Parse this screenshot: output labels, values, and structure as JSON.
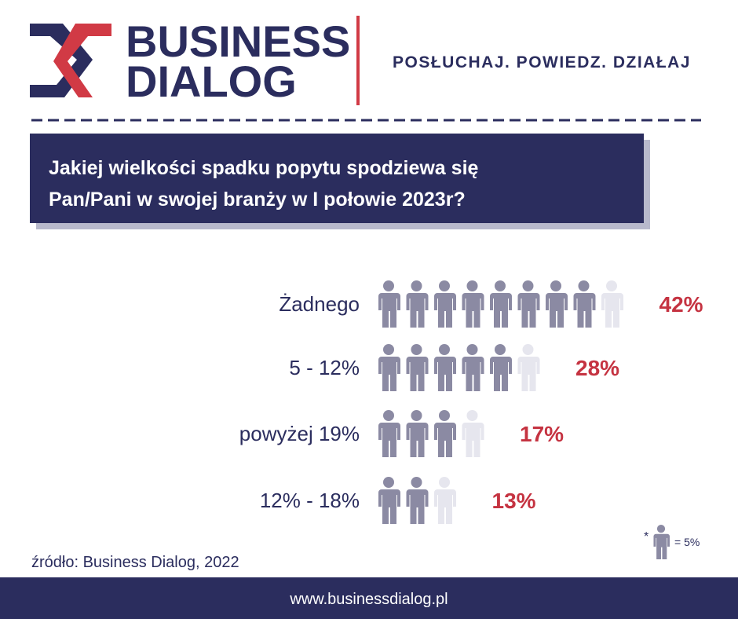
{
  "header": {
    "brand_line1": "BUSINESS",
    "brand_line2": "DIALOG",
    "tagline": "POSŁUCHAJ. POWIEDZ. DZIAŁAJ"
  },
  "chart_data": {
    "type": "pictogram",
    "title_lines": [
      "Jakiej wielkości spadku popytu spodziewa się",
      "Pan/Pani w swojej branży w I połowie 2023r?"
    ],
    "categories": [
      "Żadnego",
      "5 - 12%",
      "powyżej 19%",
      "12% - 18%"
    ],
    "values": [
      42,
      28,
      17,
      13
    ],
    "value_labels": [
      "42%",
      "28%",
      "17%",
      "13%"
    ],
    "color": "#8b8aa3",
    "remainder_color": "#e6e6ee",
    "label_color": "#c53341",
    "icon_legend": {
      "marker": "*",
      "value": 5,
      "label": "= 5%"
    }
  },
  "source": "źródło: Business Dialog, 2022",
  "footer": "www.businessdialog.pl"
}
